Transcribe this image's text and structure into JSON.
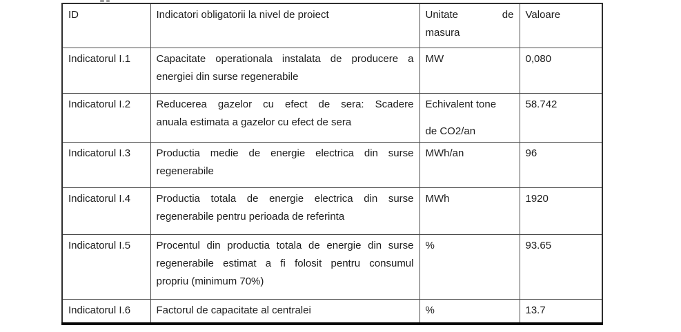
{
  "table": {
    "header": {
      "id": "ID",
      "indicator": "Indicatori obligatorii la nivel de proiect",
      "unit_lines": [
        "Unitate de",
        "masura"
      ],
      "value": "Valoare"
    },
    "rows": [
      {
        "id": "Indicatorul I.1",
        "indicator_lines": [
          "Capacitate operationala instalata de producere a",
          "energiei din surse regenerabile"
        ],
        "unit_lines": [
          "MW"
        ],
        "value": "0,080"
      },
      {
        "id": "Indicatorul I.2",
        "indicator_lines": [
          "Reducerea gazelor cu efect de sera: Scadere",
          "anuala estimata a gazelor cu efect de sera"
        ],
        "unit_lines": [
          "Echivalent tone",
          "de CO2/an"
        ],
        "value": "58.742"
      },
      {
        "id": "Indicatorul I.3",
        "indicator_lines": [
          "Productia medie de energie electrica din surse",
          "regenerabile"
        ],
        "unit_lines": [
          "MWh/an"
        ],
        "value": "96"
      },
      {
        "id": "Indicatorul I.4",
        "indicator_lines": [
          "Productia totala de energie electrica din surse",
          "regenerabile pentru perioada de referinta"
        ],
        "unit_lines": [
          "MWh"
        ],
        "value": "1920"
      },
      {
        "id": "Indicatorul I.5",
        "indicator_lines": [
          "Procentul din productia totala de energie din surse",
          "regenerabile estimat a fi folosit pentru consumul",
          "propriu (minimum 70%)"
        ],
        "unit_lines": [
          "%"
        ],
        "value": "93.65"
      },
      {
        "id": "Indicatorul I.6",
        "indicator_lines": [
          "Factorul de capacitate al centralei"
        ],
        "unit_lines": [
          "%"
        ],
        "value": "13.7"
      }
    ]
  },
  "colors": {
    "text": "#1c1c1c",
    "grid_inner": "#4c4c4c",
    "grid_outer": "#2e2e2e",
    "bottom_border": "#050505",
    "background": "#ffffff"
  }
}
